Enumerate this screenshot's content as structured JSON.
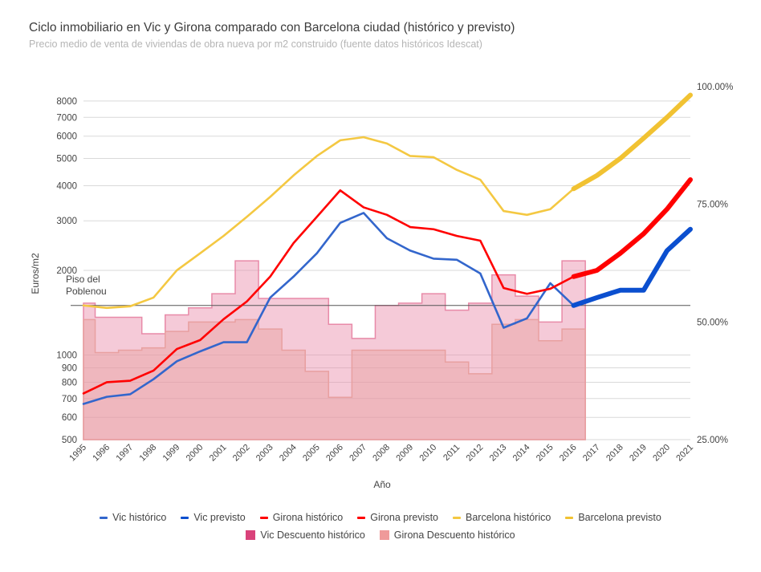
{
  "chart_data": {
    "type": "line",
    "title": "Ciclo inmobiliario en Vic y Girona comparado con Barcelona ciudad (histórico y previsto)",
    "subtitle": "Precio medio de venta de viviendas de obra nueva por m2 construido (fuente datos históricos Idescat)",
    "xlabel": "Año",
    "ylabel": "Euros/m2",
    "yscale": "log",
    "ylim": [
      500,
      9000
    ],
    "y_ticks": [
      "500",
      "600",
      "700",
      "800",
      "900",
      "1000",
      "2000",
      "3000",
      "4000",
      "5000",
      "6000",
      "7000",
      "8000"
    ],
    "y2_ticks": [
      "25.00%",
      "50.00%",
      "75.00%",
      "100.00%"
    ],
    "y2lim": [
      25,
      100
    ],
    "categories": [
      "1995",
      "1996",
      "1997",
      "1998",
      "1999",
      "2000",
      "2001",
      "2002",
      "2003",
      "2004",
      "2005",
      "2006",
      "2007",
      "2008",
      "2009",
      "2010",
      "2011",
      "2012",
      "2013",
      "2014",
      "2015",
      "2016",
      "2017",
      "2018",
      "2019",
      "2020",
      "2021"
    ],
    "reference_line": {
      "label_line1": "Piso del",
      "label_line2": "Poblenou",
      "value": 1500
    },
    "series": [
      {
        "name": "Vic histórico",
        "color": "#3366cc",
        "axis": "left",
        "style": "line",
        "values": [
          670,
          710,
          725,
          820,
          950,
          1030,
          1110,
          1110,
          1600,
          1900,
          2300,
          2950,
          3200,
          2600,
          2350,
          2200,
          2180,
          1950,
          1250,
          1350,
          1800,
          1500,
          null,
          null,
          null,
          null,
          null
        ]
      },
      {
        "name": "Vic previsto",
        "color": "#0b4fcf",
        "axis": "left",
        "style": "thick",
        "values": [
          null,
          null,
          null,
          null,
          null,
          null,
          null,
          null,
          null,
          null,
          null,
          null,
          null,
          null,
          null,
          null,
          null,
          null,
          null,
          null,
          null,
          1500,
          1600,
          1700,
          1700,
          2350,
          2800
        ]
      },
      {
        "name": "Girona histórico",
        "color": "#ff0000",
        "axis": "left",
        "style": "line",
        "values": [
          730,
          800,
          810,
          880,
          1050,
          1130,
          1340,
          1550,
          1900,
          2500,
          3100,
          3850,
          3350,
          3150,
          2850,
          2800,
          2650,
          2550,
          1730,
          1650,
          1720,
          1900,
          null,
          null,
          null,
          null,
          null
        ]
      },
      {
        "name": "Girona previsto",
        "color": "#ff0000",
        "axis": "left",
        "style": "thick",
        "values": [
          null,
          null,
          null,
          null,
          null,
          null,
          null,
          null,
          null,
          null,
          null,
          null,
          null,
          null,
          null,
          null,
          null,
          null,
          null,
          null,
          null,
          1900,
          2000,
          2300,
          2700,
          3300,
          4200
        ]
      },
      {
        "name": "Barcelona histórico",
        "color": "#f4c842",
        "axis": "left",
        "style": "line",
        "values": [
          1500,
          1470,
          1490,
          1600,
          2000,
          2300,
          2650,
          3100,
          3650,
          4350,
          5100,
          5800,
          5950,
          5650,
          5100,
          5050,
          4550,
          4200,
          3250,
          3150,
          3300,
          3900,
          null,
          null,
          null,
          null,
          null
        ]
      },
      {
        "name": "Barcelona previsto",
        "color": "#f1c232",
        "axis": "left",
        "style": "thick",
        "values": [
          null,
          null,
          null,
          null,
          null,
          null,
          null,
          null,
          null,
          null,
          null,
          null,
          null,
          null,
          null,
          null,
          null,
          null,
          null,
          null,
          null,
          3900,
          4350,
          5000,
          5900,
          7000,
          8400
        ]
      },
      {
        "name": "Vic Descuento histórico",
        "color": "#e88aa8",
        "axis": "right",
        "style": "step-area",
        "values": [
          54,
          51,
          51,
          47.5,
          51.5,
          53,
          56,
          63,
          55,
          55,
          55,
          49.5,
          46.5,
          53.5,
          54,
          56,
          52.5,
          54,
          60,
          55.5,
          50,
          63,
          null,
          null,
          null,
          null,
          null
        ]
      },
      {
        "name": "Girona Descuento histórico",
        "color": "#e8a0a0",
        "axis": "right",
        "style": "step-area",
        "values": [
          50.5,
          43.5,
          44,
          44.5,
          48,
          50,
          50,
          50.5,
          48.5,
          44,
          39.5,
          34,
          44,
          44,
          44,
          44,
          41.5,
          39,
          49.5,
          50.5,
          46,
          48.5,
          null,
          null,
          null,
          null,
          null
        ]
      }
    ],
    "legend_rows": [
      [
        "Vic histórico",
        "Vic previsto",
        "Girona histórico",
        "Girona previsto",
        "Barcelona histórico",
        "Barcelona previsto"
      ],
      [
        "Vic Descuento histórico",
        "Girona Descuento histórico"
      ]
    ],
    "legend_position": "bottom",
    "grid": true
  }
}
